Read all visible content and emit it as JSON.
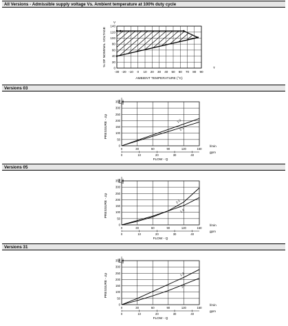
{
  "sections": [
    {
      "title": "All Versions - Admissible supply voltage Vs. Ambient temperature at 100% duty cycle"
    },
    {
      "title": "Versions 03"
    },
    {
      "title": "Versions 05"
    },
    {
      "title": "Versions 31"
    }
  ],
  "chart_data": [
    {
      "type": "area",
      "title": "All Versions - Admissible supply voltage Vs. Ambient temperature at 100% duty cycle",
      "xlabel": "AMBIENT TEMPERATURE (°C)",
      "ylabel": "% OF NOMINAL VOLTAGE",
      "x_unit": "T",
      "y_unit": "V",
      "xlim": [
        -30,
        90
      ],
      "ylim": [
        0,
        140
      ],
      "x_ticks": [
        "-30",
        "-20",
        "-10",
        "0",
        "10",
        "20",
        "30",
        "40",
        "50",
        "60",
        "70",
        "80",
        "90"
      ],
      "y_ticks": [
        "0",
        "20",
        "40",
        "60",
        "80",
        "100",
        "120",
        "140"
      ],
      "series": [
        {
          "x": [
            -30,
            -25,
            65,
            85
          ],
          "y": [
            124,
            124,
            124,
            102
          ]
        },
        {
          "x": [
            -30,
            85
          ],
          "y": [
            40,
            102
          ]
        }
      ],
      "grid": true
    },
    {
      "type": "line",
      "xlabel": "FLOW - Q",
      "ylabel": "PRESSURE - Δp",
      "y_units": [
        "psi",
        "bar"
      ],
      "x_units": [
        "l/min",
        "gpm"
      ],
      "xlim": [
        0,
        150
      ],
      "ylim": [
        0,
        25
      ],
      "x_ticks_lmin": [
        "0",
        "30",
        "60",
        "90",
        "120",
        "150"
      ],
      "x_ticks_gpm": [
        "0",
        "10",
        "20",
        "30",
        "40"
      ],
      "y_ticks_psi": [
        "0",
        "50",
        "100",
        "150",
        "200",
        "250",
        "300",
        "350"
      ],
      "series": [
        {
          "name": "1-2",
          "x": [
            0,
            150
          ],
          "y": [
            0,
            15.5
          ]
        },
        {
          "name": "2-1",
          "x": [
            0,
            150
          ],
          "y": [
            0,
            13.5
          ]
        }
      ],
      "grid": true
    },
    {
      "type": "line",
      "xlabel": "FLOW - Q",
      "ylabel": "PRESSURE - Δp",
      "y_units": [
        "psi",
        "bar"
      ],
      "x_units": [
        "l/min",
        "gpm"
      ],
      "xlim": [
        0,
        150
      ],
      "ylim": [
        0,
        25
      ],
      "x_ticks_lmin": [
        "0",
        "30",
        "60",
        "90",
        "120",
        "150"
      ],
      "x_ticks_gpm": [
        "0",
        "10",
        "20",
        "30",
        "40"
      ],
      "y_ticks_psi": [
        "0",
        "50",
        "100",
        "150",
        "200",
        "250",
        "300",
        "350"
      ],
      "series": [
        {
          "name": "2-1",
          "x": [
            0,
            30,
            60,
            90,
            120,
            150
          ],
          "y": [
            0,
            2,
            4.5,
            8,
            13,
            21
          ]
        },
        {
          "name": "1-2",
          "x": [
            0,
            30,
            60,
            90,
            120,
            150
          ],
          "y": [
            0,
            2.5,
            5,
            8,
            11,
            15.5
          ]
        }
      ],
      "grid": true
    },
    {
      "type": "line",
      "xlabel": "FLOW - Q",
      "ylabel": "PRESSURE - Δp",
      "y_units": [
        "psi",
        "bar"
      ],
      "x_units": [
        "l/min",
        "gpm"
      ],
      "xlim": [
        0,
        150
      ],
      "ylim": [
        0,
        25
      ],
      "x_ticks_lmin": [
        "0",
        "30",
        "60",
        "90",
        "120",
        "150"
      ],
      "x_ticks_gpm": [
        "0",
        "10",
        "20",
        "30",
        "40"
      ],
      "y_ticks_psi": [
        "0",
        "50",
        "100",
        "150",
        "200",
        "250",
        "300",
        "350"
      ],
      "series": [
        {
          "name": "1-2",
          "x": [
            0,
            30,
            60,
            90,
            120,
            150
          ],
          "y": [
            0,
            3.5,
            7.5,
            11.5,
            15.5,
            20
          ]
        },
        {
          "name": "2-1",
          "x": [
            0,
            30,
            60,
            90,
            120,
            150
          ],
          "y": [
            0,
            2.3,
            5,
            8,
            11.5,
            15
          ]
        }
      ],
      "grid": true
    }
  ]
}
